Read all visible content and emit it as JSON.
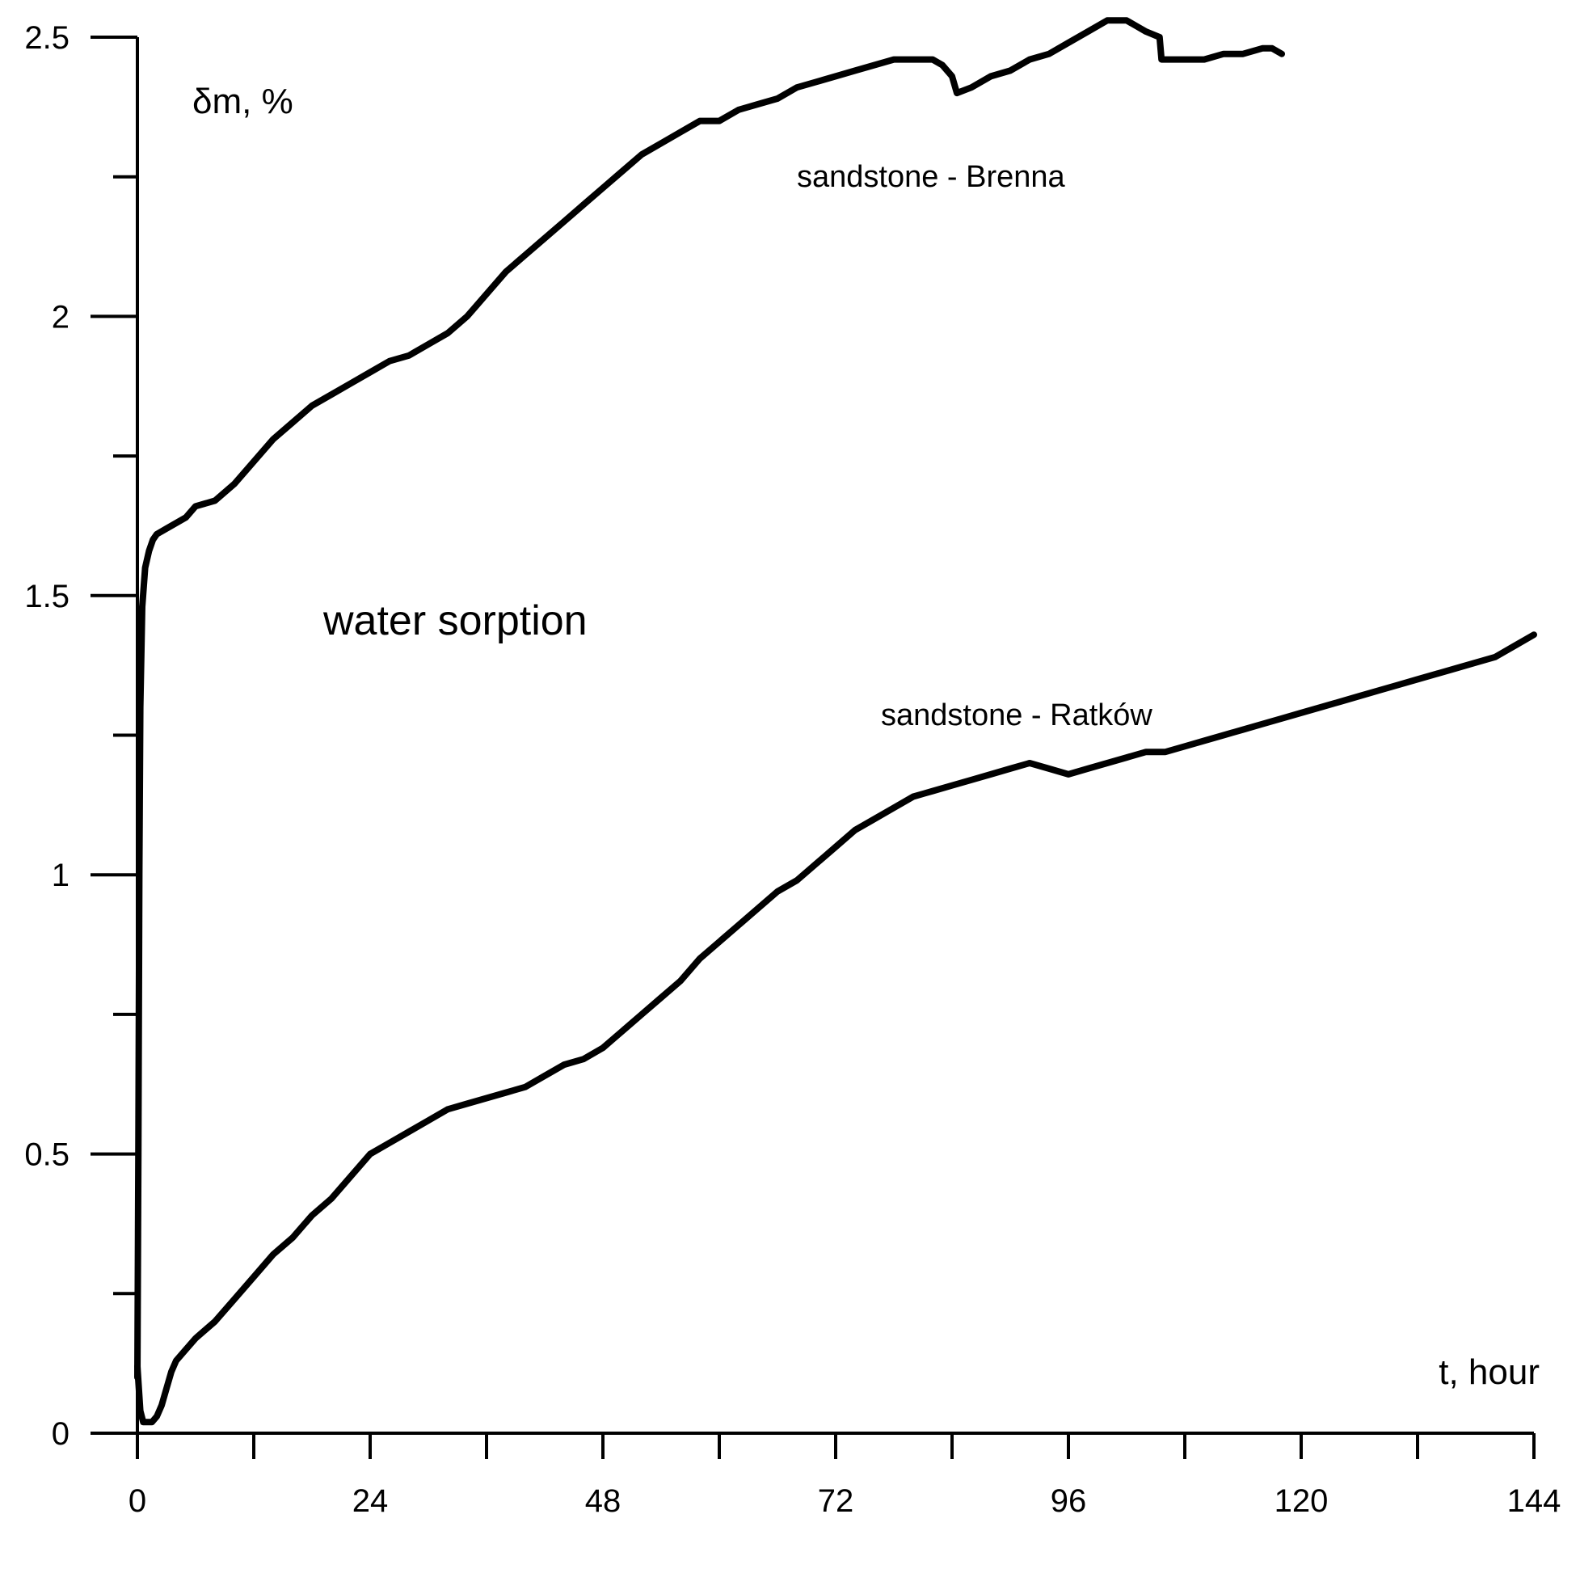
{
  "chart_data": {
    "type": "line",
    "title": "",
    "annotation": "water sorption",
    "xlabel": "t, hour",
    "ylabel": "δm, %",
    "xlim": [
      0,
      144
    ],
    "ylim": [
      0,
      2.5
    ],
    "x_ticks": [
      0,
      24,
      48,
      72,
      96,
      120,
      144
    ],
    "x_tick_labels": [
      "0",
      "24",
      "48",
      "72",
      "96",
      "120",
      "144"
    ],
    "x_minor_ticks": [
      12,
      36,
      60,
      84,
      108,
      132
    ],
    "y_ticks": [
      0,
      0.5,
      1,
      1.5,
      2,
      2.5
    ],
    "y_tick_labels": [
      "0",
      "0.5",
      "1",
      "1.5",
      "2",
      "2.5"
    ],
    "y_minor_ticks": [
      0.25,
      0.75,
      1.25,
      1.75,
      2.25
    ],
    "grid": false,
    "series": [
      {
        "name": "sandstone - Brenna",
        "x": [
          0,
          0.1,
          0.2,
          0.3,
          0.5,
          0.8,
          1.2,
          1.6,
          2,
          3,
          5,
          6,
          8,
          10,
          12,
          14,
          16,
          18,
          20,
          22,
          24,
          26,
          28,
          30,
          32,
          34,
          36,
          38,
          40,
          42,
          44,
          46,
          48,
          50,
          52,
          54,
          56,
          58,
          60,
          62,
          64,
          66,
          68,
          70,
          72,
          74,
          76,
          78,
          80,
          82,
          83,
          84,
          84.5,
          86,
          88,
          90,
          92,
          94,
          96,
          98,
          100,
          102,
          103,
          104,
          105.4,
          105.6,
          108,
          110,
          112,
          114,
          116,
          117,
          118
        ],
        "values": [
          0.1,
          0.5,
          1.0,
          1.3,
          1.48,
          1.55,
          1.58,
          1.6,
          1.61,
          1.62,
          1.64,
          1.66,
          1.67,
          1.7,
          1.74,
          1.78,
          1.81,
          1.84,
          1.86,
          1.88,
          1.9,
          1.92,
          1.93,
          1.95,
          1.97,
          2.0,
          2.04,
          2.08,
          2.11,
          2.14,
          2.17,
          2.2,
          2.23,
          2.26,
          2.29,
          2.31,
          2.33,
          2.35,
          2.35,
          2.37,
          2.38,
          2.39,
          2.41,
          2.42,
          2.43,
          2.44,
          2.45,
          2.46,
          2.46,
          2.46,
          2.45,
          2.43,
          2.4,
          2.41,
          2.43,
          2.44,
          2.46,
          2.47,
          2.49,
          2.51,
          2.53,
          2.53,
          2.52,
          2.51,
          2.5,
          2.46,
          2.46,
          2.46,
          2.47,
          2.47,
          2.48,
          2.48,
          2.47
        ]
      },
      {
        "name": "sandstone - Ratków",
        "x": [
          0,
          0.3,
          0.6,
          1,
          1.5,
          2,
          2.5,
          3,
          3.5,
          4,
          5,
          6,
          8,
          10,
          12,
          14,
          16,
          18,
          20,
          22,
          24,
          26,
          28,
          30,
          32,
          34,
          36,
          38,
          40,
          42,
          44,
          46,
          48,
          50,
          52,
          54,
          56,
          58,
          60,
          62,
          64,
          66,
          68,
          70,
          72,
          74,
          76,
          78,
          80,
          82,
          84,
          86,
          88,
          90,
          92,
          94,
          96,
          98,
          100,
          102,
          104,
          106,
          108,
          110,
          112,
          114,
          116,
          118,
          120,
          122,
          124,
          126,
          128,
          130,
          132,
          134,
          136,
          138,
          140,
          142,
          144
        ],
        "values": [
          0.12,
          0.04,
          0.02,
          0.02,
          0.02,
          0.03,
          0.05,
          0.08,
          0.11,
          0.13,
          0.15,
          0.17,
          0.2,
          0.24,
          0.28,
          0.32,
          0.35,
          0.39,
          0.42,
          0.46,
          0.5,
          0.52,
          0.54,
          0.56,
          0.58,
          0.59,
          0.6,
          0.61,
          0.62,
          0.64,
          0.66,
          0.67,
          0.69,
          0.72,
          0.75,
          0.78,
          0.81,
          0.85,
          0.88,
          0.91,
          0.94,
          0.97,
          0.99,
          1.02,
          1.05,
          1.08,
          1.1,
          1.12,
          1.14,
          1.15,
          1.16,
          1.17,
          1.18,
          1.19,
          1.2,
          1.19,
          1.18,
          1.19,
          1.2,
          1.21,
          1.22,
          1.22,
          1.23,
          1.24,
          1.25,
          1.26,
          1.27,
          1.28,
          1.29,
          1.3,
          1.31,
          1.32,
          1.33,
          1.34,
          1.35,
          1.36,
          1.37,
          1.38,
          1.39,
          1.41,
          1.43
        ]
      }
    ]
  }
}
